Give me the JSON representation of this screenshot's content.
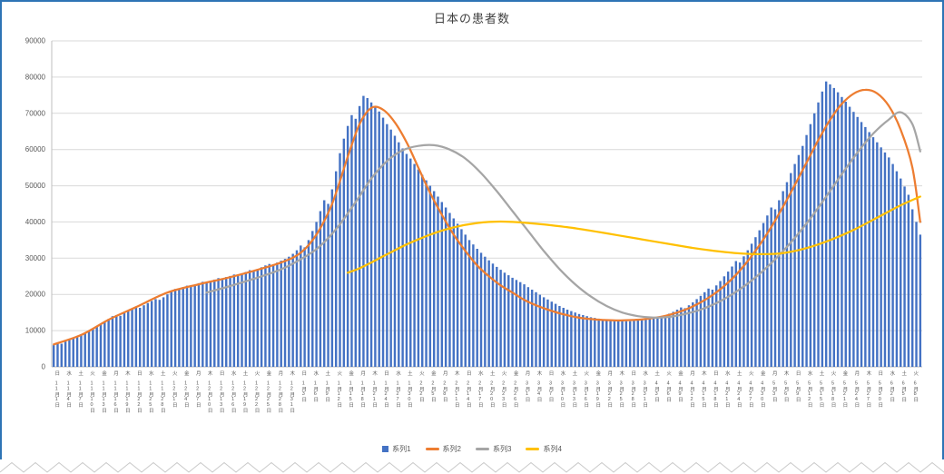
{
  "chart_data": {
    "type": "combo",
    "title": "日本の患者数",
    "xlabel": "",
    "ylabel": "",
    "ylim": [
      0,
      90000
    ],
    "y_ticks": [
      "0",
      "10000",
      "20000",
      "30000",
      "40000",
      "50000",
      "60000",
      "70000",
      "80000",
      "90000"
    ],
    "grid": true,
    "legend_position": "bottom",
    "n_days": 222,
    "label_interval_days": 3,
    "x_labels": [
      [
        "日",
        "11月1日"
      ],
      [
        "水",
        "11月4日"
      ],
      [
        "土",
        "11月7日"
      ],
      [
        "火",
        "11月10日"
      ],
      [
        "金",
        "11月13日"
      ],
      [
        "月",
        "11月16日"
      ],
      [
        "木",
        "11月19日"
      ],
      [
        "日",
        "11月22日"
      ],
      [
        "水",
        "11月25日"
      ],
      [
        "土",
        "11月28日"
      ],
      [
        "火",
        "12月1日"
      ],
      [
        "金",
        "12月4日"
      ],
      [
        "月",
        "12月7日"
      ],
      [
        "木",
        "12月10日"
      ],
      [
        "日",
        "12月13日"
      ],
      [
        "水",
        "12月16日"
      ],
      [
        "土",
        "12月19日"
      ],
      [
        "火",
        "12月22日"
      ],
      [
        "金",
        "12月25日"
      ],
      [
        "月",
        "12月28日"
      ],
      [
        "木",
        "12月31日"
      ],
      [
        "日",
        "1月3日"
      ],
      [
        "水",
        "1月6日"
      ],
      [
        "土",
        "1月9日"
      ],
      [
        "火",
        "1月12日"
      ],
      [
        "金",
        "1月15日"
      ],
      [
        "月",
        "1月18日"
      ],
      [
        "木",
        "1月21日"
      ],
      [
        "日",
        "1月24日"
      ],
      [
        "水",
        "1月27日"
      ],
      [
        "土",
        "1月30日"
      ],
      [
        "火",
        "2月2日"
      ],
      [
        "金",
        "2月5日"
      ],
      [
        "月",
        "2月8日"
      ],
      [
        "木",
        "2月11日"
      ],
      [
        "日",
        "2月14日"
      ],
      [
        "水",
        "2月17日"
      ],
      [
        "土",
        "2月20日"
      ],
      [
        "火",
        "2月23日"
      ],
      [
        "金",
        "2月26日"
      ],
      [
        "月",
        "3月1日"
      ],
      [
        "木",
        "3月4日"
      ],
      [
        "日",
        "3月7日"
      ],
      [
        "水",
        "3月10日"
      ],
      [
        "土",
        "3月13日"
      ],
      [
        "火",
        "3月16日"
      ],
      [
        "金",
        "3月19日"
      ],
      [
        "月",
        "3月22日"
      ],
      [
        "木",
        "3月25日"
      ],
      [
        "日",
        "3月28日"
      ],
      [
        "水",
        "3月31日"
      ],
      [
        "土",
        "4月3日"
      ],
      [
        "火",
        "4月6日"
      ],
      [
        "金",
        "4月9日"
      ],
      [
        "月",
        "4月12日"
      ],
      [
        "木",
        "4月15日"
      ],
      [
        "日",
        "4月18日"
      ],
      [
        "水",
        "4月21日"
      ],
      [
        "土",
        "4月24日"
      ],
      [
        "火",
        "4月27日"
      ],
      [
        "金",
        "4月30日"
      ],
      [
        "月",
        "5月3日"
      ],
      [
        "木",
        "5月6日"
      ],
      [
        "日",
        "5月9日"
      ],
      [
        "水",
        "5月12日"
      ],
      [
        "土",
        "5月15日"
      ],
      [
        "火",
        "5月18日"
      ],
      [
        "金",
        "5月21日"
      ],
      [
        "月",
        "5月24日"
      ],
      [
        "木",
        "5月27日"
      ],
      [
        "日",
        "5月30日"
      ],
      [
        "水",
        "6月2日"
      ],
      [
        "土",
        "6月5日"
      ],
      [
        "火",
        "6月8日"
      ]
    ],
    "series": [
      {
        "name": "系列1",
        "type": "bar",
        "color": "#4472C4",
        "values": [
          6000,
          6500,
          6400,
          7000,
          7600,
          8100,
          8500,
          9000,
          9400,
          9900,
          10500,
          11200,
          11800,
          12500,
          13200,
          14000,
          14300,
          14100,
          14800,
          15400,
          15900,
          16500,
          16300,
          17000,
          17600,
          18200,
          18700,
          18500,
          19200,
          20000,
          21000,
          21500,
          21300,
          22000,
          22400,
          22100,
          22700,
          23100,
          23500,
          23200,
          23800,
          24100,
          24500,
          24300,
          24800,
          25100,
          25500,
          25300,
          25800,
          26200,
          26700,
          26400,
          27000,
          27500,
          28000,
          28400,
          28100,
          28800,
          29300,
          29800,
          30400,
          31200,
          32200,
          33500,
          33000,
          35000,
          37500,
          40000,
          43000,
          46000,
          45000,
          49000,
          54000,
          59000,
          63000,
          66500,
          69500,
          68500,
          72000,
          74800,
          74200,
          73000,
          71800,
          70500,
          68800,
          67000,
          65500,
          63800,
          62000,
          60300,
          58800,
          57500,
          56000,
          54500,
          53000,
          51500,
          50000,
          48500,
          47000,
          45500,
          44000,
          42500,
          41000,
          39500,
          38000,
          36500,
          35000,
          33800,
          32600,
          31500,
          30400,
          29400,
          28500,
          27600,
          26800,
          26000,
          25300,
          24600,
          24000,
          23400,
          22800,
          22000,
          21300,
          20600,
          19900,
          19200,
          18600,
          18000,
          17400,
          16800,
          16300,
          15800,
          15400,
          15000,
          14600,
          14300,
          14000,
          13700,
          13500,
          13300,
          13100,
          13000,
          12900,
          12800,
          12700,
          12700,
          12600,
          12600,
          12700,
          12800,
          12900,
          13100,
          13300,
          13500,
          13400,
          13800,
          14200,
          14700,
          15200,
          15800,
          16400,
          16200,
          17000,
          17800,
          18700,
          19600,
          20600,
          21600,
          21300,
          22500,
          23700,
          25000,
          26300,
          27700,
          29200,
          28800,
          30500,
          32200,
          34000,
          35800,
          37700,
          39700,
          41800,
          44000,
          43500,
          46000,
          48500,
          51000,
          53500,
          56000,
          58500,
          61000,
          64000,
          67000,
          70000,
          73000,
          76000,
          78800,
          78000,
          77000,
          75800,
          74500,
          73200,
          71800,
          70400,
          69000,
          67600,
          66200,
          64800,
          63400,
          62000,
          60600,
          59200,
          57800,
          56000,
          54000,
          52000,
          49800,
          47500,
          43500,
          40000,
          36500
        ]
      },
      {
        "name": "系列2",
        "type": "line",
        "color": "#ED7D31",
        "points": [
          [
            0,
            6200
          ],
          [
            7,
            8800
          ],
          [
            14,
            13000
          ],
          [
            21,
            16500
          ],
          [
            29,
            20500
          ],
          [
            37,
            22800
          ],
          [
            44,
            24500
          ],
          [
            51,
            26500
          ],
          [
            58,
            28800
          ],
          [
            63,
            31500
          ],
          [
            67,
            36500
          ],
          [
            71,
            45000
          ],
          [
            75,
            58000
          ],
          [
            78,
            67000
          ],
          [
            81,
            71500
          ],
          [
            84,
            71000
          ],
          [
            87,
            67500
          ],
          [
            90,
            62000
          ],
          [
            93,
            55000
          ],
          [
            96,
            48000
          ],
          [
            99,
            42000
          ],
          [
            102,
            36500
          ],
          [
            105,
            32000
          ],
          [
            108,
            28000
          ],
          [
            111,
            25000
          ],
          [
            114,
            22500
          ],
          [
            117,
            20500
          ],
          [
            120,
            18500
          ],
          [
            123,
            17000
          ],
          [
            126,
            15800
          ],
          [
            129,
            14800
          ],
          [
            132,
            14000
          ],
          [
            135,
            13400
          ],
          [
            138,
            13100
          ],
          [
            141,
            12900
          ],
          [
            144,
            12800
          ],
          [
            147,
            12900
          ],
          [
            150,
            13100
          ],
          [
            153,
            13500
          ],
          [
            156,
            14100
          ],
          [
            159,
            15000
          ],
          [
            162,
            16200
          ],
          [
            165,
            17800
          ],
          [
            168,
            19800
          ],
          [
            171,
            22300
          ],
          [
            174,
            25400
          ],
          [
            177,
            29200
          ],
          [
            180,
            33600
          ],
          [
            183,
            38600
          ],
          [
            186,
            44200
          ],
          [
            189,
            50200
          ],
          [
            192,
            56400
          ],
          [
            195,
            62600
          ],
          [
            198,
            68200
          ],
          [
            201,
            72600
          ],
          [
            204,
            75400
          ],
          [
            207,
            76500
          ],
          [
            210,
            75500
          ],
          [
            213,
            72000
          ],
          [
            216,
            65500
          ],
          [
            219,
            55000
          ],
          [
            221,
            40000
          ]
        ]
      },
      {
        "name": "系列3",
        "type": "line",
        "color": "#A5A5A5",
        "points": [
          [
            39,
            20500
          ],
          [
            45,
            22300
          ],
          [
            51,
            24300
          ],
          [
            57,
            26500
          ],
          [
            61,
            28500
          ],
          [
            67,
            32500
          ],
          [
            72,
            38000
          ],
          [
            77,
            45500
          ],
          [
            81,
            52000
          ],
          [
            85,
            56800
          ],
          [
            89,
            59800
          ],
          [
            93,
            61000
          ],
          [
            97,
            61200
          ],
          [
            101,
            60000
          ],
          [
            105,
            57500
          ],
          [
            109,
            53500
          ],
          [
            113,
            48500
          ],
          [
            117,
            43000
          ],
          [
            121,
            37500
          ],
          [
            125,
            32000
          ],
          [
            129,
            27000
          ],
          [
            133,
            22800
          ],
          [
            137,
            19400
          ],
          [
            141,
            16800
          ],
          [
            145,
            15000
          ],
          [
            149,
            14000
          ],
          [
            153,
            13600
          ],
          [
            157,
            13800
          ],
          [
            161,
            14600
          ],
          [
            165,
            15800
          ],
          [
            169,
            17600
          ],
          [
            173,
            20000
          ],
          [
            177,
            23000
          ],
          [
            181,
            26600
          ],
          [
            185,
            30800
          ],
          [
            189,
            35600
          ],
          [
            193,
            41000
          ],
          [
            197,
            47000
          ],
          [
            201,
            53200
          ],
          [
            205,
            59200
          ],
          [
            209,
            64400
          ],
          [
            213,
            68300
          ],
          [
            216,
            70300
          ],
          [
            219,
            67000
          ],
          [
            221,
            59500
          ]
        ]
      },
      {
        "name": "系列4",
        "type": "line",
        "color": "#FFC000",
        "points": [
          [
            75,
            26000
          ],
          [
            78,
            27200
          ],
          [
            81,
            28800
          ],
          [
            84,
            30500
          ],
          [
            87,
            32200
          ],
          [
            90,
            33800
          ],
          [
            93,
            35200
          ],
          [
            96,
            36500
          ],
          [
            99,
            37600
          ],
          [
            102,
            38500
          ],
          [
            105,
            39200
          ],
          [
            108,
            39700
          ],
          [
            111,
            40000
          ],
          [
            114,
            40100
          ],
          [
            117,
            40000
          ],
          [
            120,
            39800
          ],
          [
            126,
            39200
          ],
          [
            132,
            38400
          ],
          [
            138,
            37400
          ],
          [
            144,
            36300
          ],
          [
            150,
            35200
          ],
          [
            156,
            34100
          ],
          [
            162,
            33000
          ],
          [
            168,
            32100
          ],
          [
            174,
            31400
          ],
          [
            180,
            31100
          ],
          [
            186,
            31400
          ],
          [
            192,
            32800
          ],
          [
            198,
            35000
          ],
          [
            204,
            37800
          ],
          [
            210,
            41200
          ],
          [
            216,
            44600
          ],
          [
            221,
            47000
          ]
        ]
      }
    ]
  }
}
